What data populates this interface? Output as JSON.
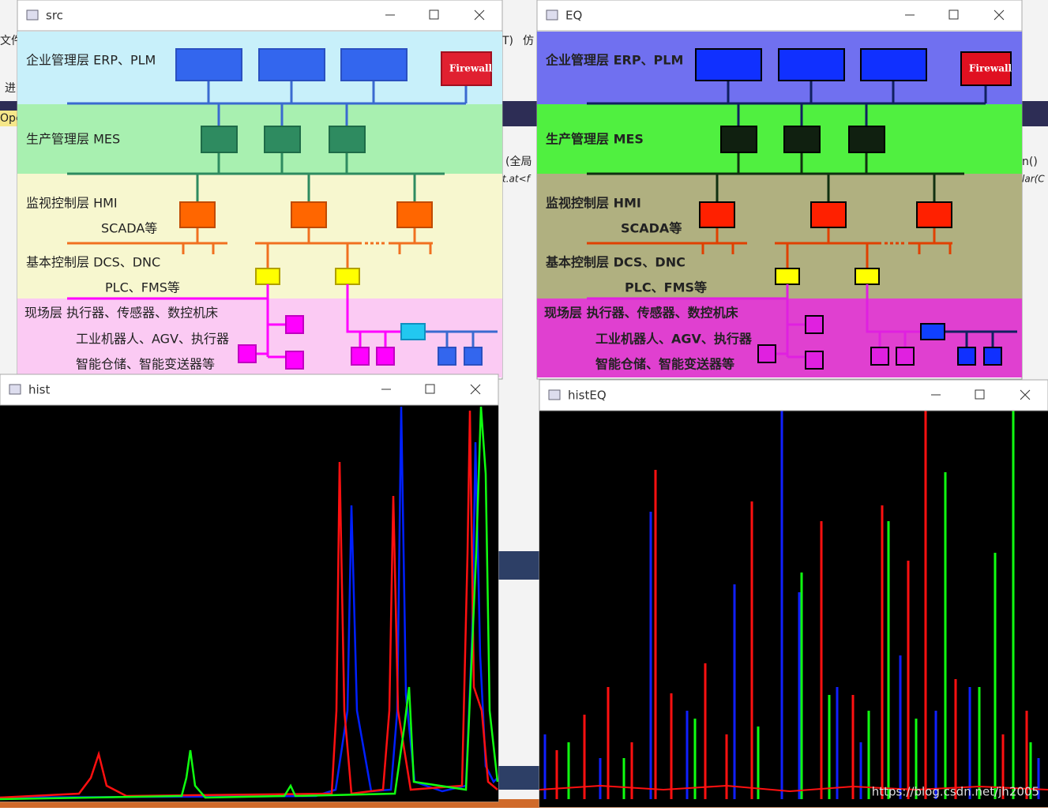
{
  "background": {
    "fragments": [
      "文件",
      "进",
      "Ope",
      "(全局",
      "t.at<f",
      "lar(C",
      "n()",
      "T)",
      "仿"
    ]
  },
  "windows": {
    "src": {
      "title": "src"
    },
    "eq": {
      "title": "EQ"
    },
    "hist": {
      "title": "hist"
    },
    "hist_eq": {
      "title": "histEQ"
    }
  },
  "diagram": {
    "labels": [
      "企业管理层  ERP、PLM",
      "生产管理层  MES",
      "监视控制层 HMI",
      "SCADA等",
      "基本控制层  DCS、DNC",
      "PLC、FMS等",
      "现场层  执行器、传感器、数控机床",
      "工业机器人、AGV、执行器",
      "智能仓储、智能变送器等"
    ],
    "firewall": "Firewall"
  },
  "watermark": "https://blog.csdn.net/jh2005"
}
